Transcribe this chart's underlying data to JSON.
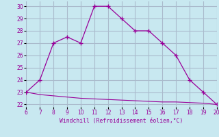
{
  "xlabel": "Windchill (Refroidissement éolien,°C)",
  "x": [
    6,
    7,
    8,
    9,
    10,
    11,
    12,
    13,
    14,
    15,
    16,
    17,
    18,
    19,
    20
  ],
  "y_upper": [
    23,
    24,
    27,
    27.5,
    27,
    30,
    30,
    29,
    28,
    28,
    27,
    26,
    24,
    23,
    22
  ],
  "y_lower": [
    23,
    22.8,
    22.7,
    22.6,
    22.5,
    22.45,
    22.4,
    22.35,
    22.3,
    22.25,
    22.2,
    22.2,
    22.15,
    22.1,
    22
  ],
  "line_color": "#990099",
  "bg_color": "#c8e8f0",
  "grid_color": "#aabbcc",
  "xlim": [
    6,
    20
  ],
  "ylim": [
    21.8,
    30.4
  ],
  "yticks": [
    22,
    23,
    24,
    25,
    26,
    27,
    28,
    29,
    30
  ],
  "xticks": [
    6,
    7,
    8,
    9,
    10,
    11,
    12,
    13,
    14,
    15,
    16,
    17,
    18,
    19,
    20
  ],
  "marker": "+"
}
